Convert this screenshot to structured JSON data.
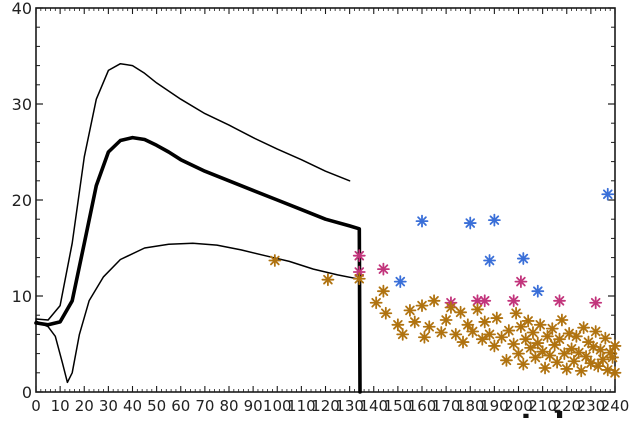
{
  "chart_data": {
    "type": "line",
    "title": "",
    "xlabel": "",
    "ylabel": "",
    "xlim": [
      0,
      240
    ],
    "ylim": [
      0,
      40
    ],
    "grid": false,
    "x_ticks": [
      0,
      10,
      20,
      30,
      40,
      50,
      60,
      70,
      80,
      90,
      100,
      110,
      120,
      130,
      140,
      150,
      160,
      170,
      180,
      190,
      200,
      210,
      220,
      230,
      240
    ],
    "x_tick_labels": [
      "0",
      "10",
      "20",
      "30",
      "40",
      "50",
      "60",
      "70",
      "80",
      "90",
      "100",
      "110",
      "120",
      "130",
      "140",
      "150",
      "160",
      "170",
      "180",
      "190",
      "200",
      "210",
      "220",
      "230",
      "240"
    ],
    "y_ticks": [
      0,
      10,
      20,
      30,
      40
    ],
    "y_tick_labels": [
      "0",
      "10",
      "20",
      "30",
      "40"
    ],
    "series": [
      {
        "kind": "line",
        "style": "thick",
        "color": "#000000",
        "points": [
          [
            0,
            7.2
          ],
          [
            5,
            7.0
          ],
          [
            10,
            7.3
          ],
          [
            15,
            9.5
          ],
          [
            20,
            15.5
          ],
          [
            25,
            21.5
          ],
          [
            30,
            25.0
          ],
          [
            35,
            26.2
          ],
          [
            40,
            26.5
          ],
          [
            45,
            26.3
          ],
          [
            50,
            25.7
          ],
          [
            55,
            25.0
          ],
          [
            60,
            24.2
          ],
          [
            70,
            23.0
          ],
          [
            80,
            22.0
          ],
          [
            90,
            21.0
          ],
          [
            100,
            20.0
          ],
          [
            110,
            19.0
          ],
          [
            120,
            18.0
          ],
          [
            130,
            17.3
          ],
          [
            134,
            17.0
          ],
          [
            134.3,
            0
          ]
        ]
      },
      {
        "kind": "line",
        "style": "thin",
        "color": "#000000",
        "points": [
          [
            0,
            7.6
          ],
          [
            5,
            7.5
          ],
          [
            10,
            9.0
          ],
          [
            15,
            15.5
          ],
          [
            20,
            24.5
          ],
          [
            25,
            30.5
          ],
          [
            30,
            33.5
          ],
          [
            35,
            34.2
          ],
          [
            40,
            34.0
          ],
          [
            45,
            33.2
          ],
          [
            50,
            32.2
          ],
          [
            60,
            30.5
          ],
          [
            70,
            29.0
          ],
          [
            80,
            27.8
          ],
          [
            90,
            26.5
          ],
          [
            100,
            25.3
          ],
          [
            110,
            24.2
          ],
          [
            120,
            23.0
          ],
          [
            130,
            22.0
          ]
        ]
      },
      {
        "kind": "line",
        "style": "thin",
        "color": "#000000",
        "points": [
          [
            0,
            7.4
          ],
          [
            5,
            6.8
          ],
          [
            8,
            5.8
          ],
          [
            11,
            3.0
          ],
          [
            13,
            1.0
          ],
          [
            15,
            2.0
          ],
          [
            18,
            6.0
          ],
          [
            22,
            9.5
          ],
          [
            28,
            12.0
          ],
          [
            35,
            13.8
          ],
          [
            45,
            15.0
          ],
          [
            55,
            15.4
          ],
          [
            65,
            15.5
          ],
          [
            75,
            15.3
          ],
          [
            85,
            14.8
          ],
          [
            95,
            14.2
          ],
          [
            105,
            13.6
          ],
          [
            115,
            12.8
          ],
          [
            125,
            12.2
          ],
          [
            133,
            11.8
          ]
        ]
      },
      {
        "kind": "scatter",
        "color": "#3a6fd8",
        "marker": "asterisk",
        "points": [
          [
            151,
            11.5
          ],
          [
            160,
            17.8
          ],
          [
            180,
            17.6
          ],
          [
            188,
            13.7
          ],
          [
            190,
            17.9
          ],
          [
            202,
            13.9
          ],
          [
            208,
            10.5
          ],
          [
            237,
            20.6
          ]
        ]
      },
      {
        "kind": "scatter",
        "color": "#c2357c",
        "marker": "asterisk",
        "points": [
          [
            134,
            14.2
          ],
          [
            134,
            12.5
          ],
          [
            144,
            12.8
          ],
          [
            172,
            9.3
          ],
          [
            183,
            9.5
          ],
          [
            186,
            9.5
          ],
          [
            198,
            9.5
          ],
          [
            201,
            11.5
          ],
          [
            217,
            9.5
          ],
          [
            232,
            9.3
          ]
        ]
      },
      {
        "kind": "scatter",
        "color": "#b07310",
        "marker": "asterisk",
        "points": [
          [
            99,
            13.7
          ],
          [
            121,
            11.7
          ],
          [
            134,
            11.8
          ],
          [
            141,
            9.3
          ],
          [
            144,
            10.5
          ],
          [
            145,
            8.2
          ],
          [
            150,
            7.0
          ],
          [
            152,
            6.0
          ],
          [
            155,
            8.5
          ],
          [
            157,
            7.3
          ],
          [
            160,
            9.0
          ],
          [
            161,
            5.7
          ],
          [
            163,
            6.8
          ],
          [
            165,
            9.5
          ],
          [
            168,
            6.2
          ],
          [
            170,
            7.5
          ],
          [
            172,
            8.8
          ],
          [
            174,
            6.0
          ],
          [
            176,
            8.3
          ],
          [
            177,
            5.2
          ],
          [
            179,
            7.0
          ],
          [
            181,
            6.3
          ],
          [
            183,
            8.6
          ],
          [
            185,
            5.5
          ],
          [
            186,
            7.3
          ],
          [
            188,
            6.0
          ],
          [
            190,
            4.8
          ],
          [
            191,
            7.7
          ],
          [
            193,
            5.7
          ],
          [
            195,
            3.3
          ],
          [
            196,
            6.4
          ],
          [
            198,
            5.0
          ],
          [
            199,
            8.2
          ],
          [
            200,
            4.0
          ],
          [
            201,
            6.8
          ],
          [
            202,
            2.9
          ],
          [
            203,
            5.5
          ],
          [
            204,
            7.4
          ],
          [
            205,
            4.6
          ],
          [
            206,
            6.2
          ],
          [
            207,
            3.6
          ],
          [
            208,
            5.1
          ],
          [
            209,
            7.0
          ],
          [
            210,
            4.2
          ],
          [
            211,
            2.5
          ],
          [
            212,
            5.8
          ],
          [
            213,
            3.8
          ],
          [
            214,
            6.6
          ],
          [
            215,
            4.9
          ],
          [
            216,
            3.1
          ],
          [
            217,
            5.5
          ],
          [
            218,
            7.5
          ],
          [
            219,
            4.0
          ],
          [
            220,
            2.4
          ],
          [
            221,
            6.1
          ],
          [
            222,
            4.5
          ],
          [
            223,
            3.2
          ],
          [
            224,
            5.8
          ],
          [
            225,
            4.1
          ],
          [
            226,
            2.2
          ],
          [
            227,
            6.7
          ],
          [
            228,
            3.7
          ],
          [
            229,
            5.2
          ],
          [
            230,
            3.0
          ],
          [
            231,
            4.7
          ],
          [
            232,
            6.3
          ],
          [
            233,
            2.7
          ],
          [
            234,
            4.4
          ],
          [
            235,
            3.4
          ],
          [
            236,
            5.6
          ],
          [
            237,
            2.3
          ],
          [
            238,
            4.1
          ],
          [
            239,
            3.6
          ],
          [
            240,
            4.8
          ],
          [
            240,
            2.0
          ]
        ]
      }
    ]
  },
  "footer": {
    "partial_text": "...etal..."
  }
}
